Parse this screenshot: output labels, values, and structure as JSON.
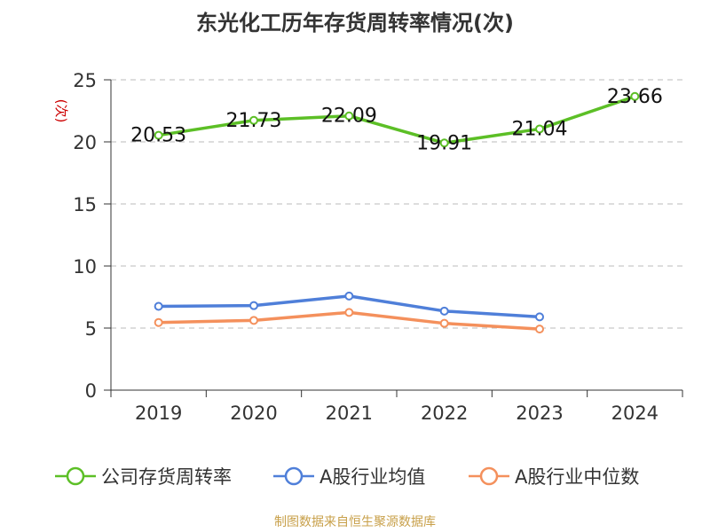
{
  "colors": {
    "company": "#5cbf26",
    "industry_avg": "#4f7fd9",
    "industry_median": "#f4905c",
    "axis_text": "#333333",
    "ylabel": "#cc0000",
    "source": "#c8a04a",
    "grid": "#bbbbbb"
  },
  "chart_data": {
    "type": "line",
    "title": "东光化工历年存货周转率情况(次)",
    "xlabel": "",
    "ylabel": "(次)",
    "categories": [
      "2019",
      "2020",
      "2021",
      "2022",
      "2023",
      "2024"
    ],
    "ylim": [
      0,
      25
    ],
    "yticks": [
      0,
      5,
      10,
      15,
      20,
      25
    ],
    "grid": "horizontal dashed",
    "legend_position": "bottom",
    "series": [
      {
        "name": "公司存货周转率",
        "color_key": "company",
        "values": [
          20.53,
          21.73,
          22.09,
          19.91,
          21.04,
          23.66
        ],
        "show_labels": true
      },
      {
        "name": "A股行业均值",
        "color_key": "industry_avg",
        "values": [
          6.75,
          6.81,
          7.58,
          6.37,
          5.9,
          null
        ],
        "show_labels": false
      },
      {
        "name": "A股行业中位数",
        "color_key": "industry_median",
        "values": [
          5.45,
          5.62,
          6.26,
          5.38,
          4.92,
          null
        ],
        "show_labels": false
      }
    ]
  },
  "footer": {
    "source": "制图数据来自恒生聚源数据库"
  }
}
